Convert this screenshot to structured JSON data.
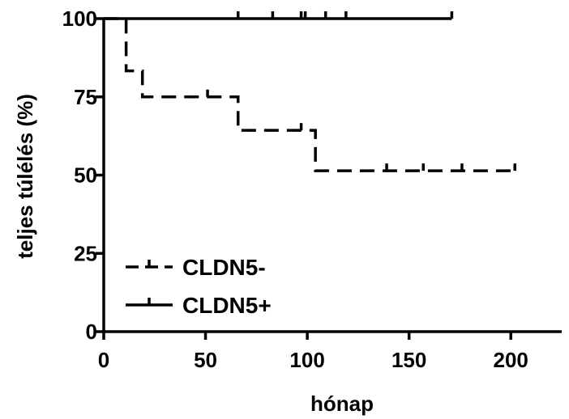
{
  "chart_data": {
    "type": "line",
    "chart_kind": "kaplan-meier",
    "title": "",
    "xlabel": "hónap",
    "ylabel": "teljes túlélés (%)",
    "xlim": [
      0,
      225
    ],
    "ylim": [
      0,
      100
    ],
    "x_ticks": [
      0,
      50,
      100,
      150,
      200
    ],
    "y_ticks": [
      0,
      25,
      50,
      75,
      100
    ],
    "legend_position": "bottom-left",
    "grid": false,
    "series": [
      {
        "name": "CLDN5-",
        "style": "dashed",
        "color": "#000000",
        "steps": [
          {
            "x": 0,
            "y": 100
          },
          {
            "x": 11,
            "y": 83.3
          },
          {
            "x": 19,
            "y": 75
          },
          {
            "x": 66,
            "y": 64.3
          },
          {
            "x": 104,
            "y": 51.4
          },
          {
            "x": 203,
            "y": 51.4
          }
        ],
        "censored": [
          {
            "x": 51,
            "y": 75
          },
          {
            "x": 97,
            "y": 64.3
          },
          {
            "x": 139,
            "y": 51.4
          },
          {
            "x": 157,
            "y": 51.4
          },
          {
            "x": 176,
            "y": 51.4
          },
          {
            "x": 202,
            "y": 51.4
          }
        ]
      },
      {
        "name": "CLDN5+",
        "style": "solid",
        "color": "#000000",
        "steps": [
          {
            "x": 0,
            "y": 100
          },
          {
            "x": 171,
            "y": 100
          }
        ],
        "censored": [
          {
            "x": 66,
            "y": 100
          },
          {
            "x": 83,
            "y": 100
          },
          {
            "x": 97,
            "y": 100
          },
          {
            "x": 99,
            "y": 100
          },
          {
            "x": 109,
            "y": 100
          },
          {
            "x": 119,
            "y": 100
          },
          {
            "x": 171,
            "y": 100
          }
        ]
      }
    ]
  }
}
